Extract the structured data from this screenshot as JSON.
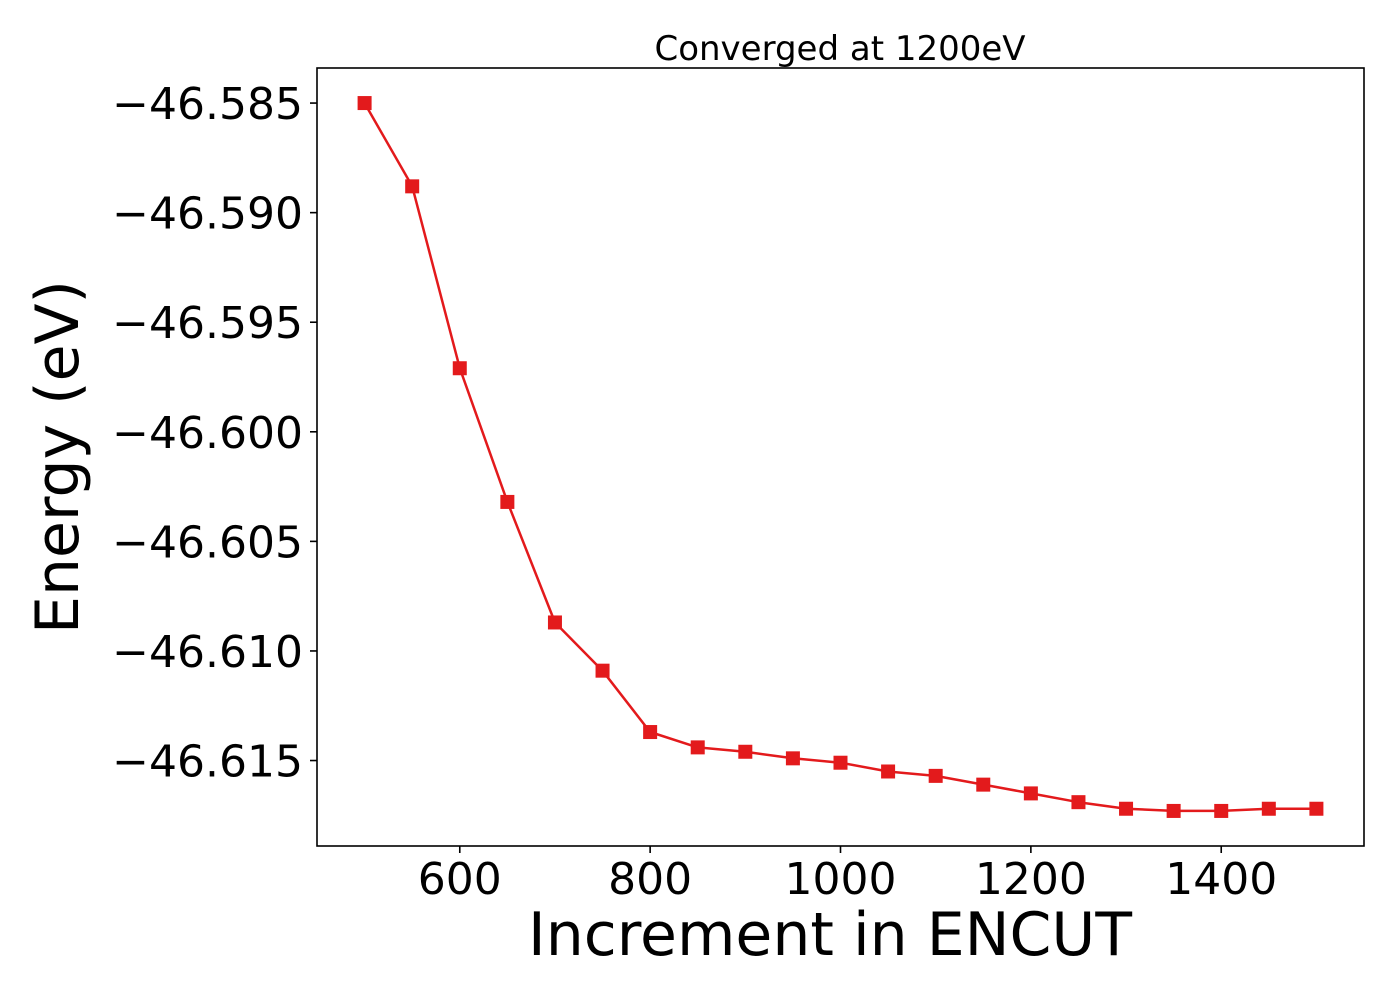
{
  "chart_data": {
    "type": "line",
    "title": "Converged at 1200eV",
    "xlabel": "Increment in ENCUT",
    "ylabel": "Energy (eV)",
    "xlim": [
      450,
      1550
    ],
    "ylim": [
      -46.6189,
      -46.5834
    ],
    "xticks": [
      600,
      800,
      1000,
      1200,
      1400
    ],
    "yticks": [
      -46.585,
      -46.59,
      -46.595,
      -46.6,
      -46.605,
      -46.61,
      -46.615
    ],
    "ytick_labels": [
      "−46.585",
      "−46.590",
      "−46.595",
      "−46.600",
      "−46.605",
      "−46.610",
      "−46.615"
    ],
    "grid": false,
    "legend": "none",
    "series": [
      {
        "color": "#e31a1c",
        "marker": "square",
        "x": [
          500,
          550,
          600,
          650,
          700,
          750,
          800,
          850,
          900,
          950,
          1000,
          1050,
          1100,
          1150,
          1200,
          1250,
          1300,
          1350,
          1400,
          1450,
          1500
        ],
        "y": [
          -46.585,
          -46.5888,
          -46.5971,
          -46.6032,
          -46.6087,
          -46.6109,
          -46.6137,
          -46.6144,
          -46.6146,
          -46.6149,
          -46.6151,
          -46.6155,
          -46.6157,
          -46.6161,
          -46.6165,
          -46.6169,
          -46.6172,
          -46.6173,
          -46.6173,
          -46.6172,
          -46.6172
        ]
      }
    ]
  }
}
